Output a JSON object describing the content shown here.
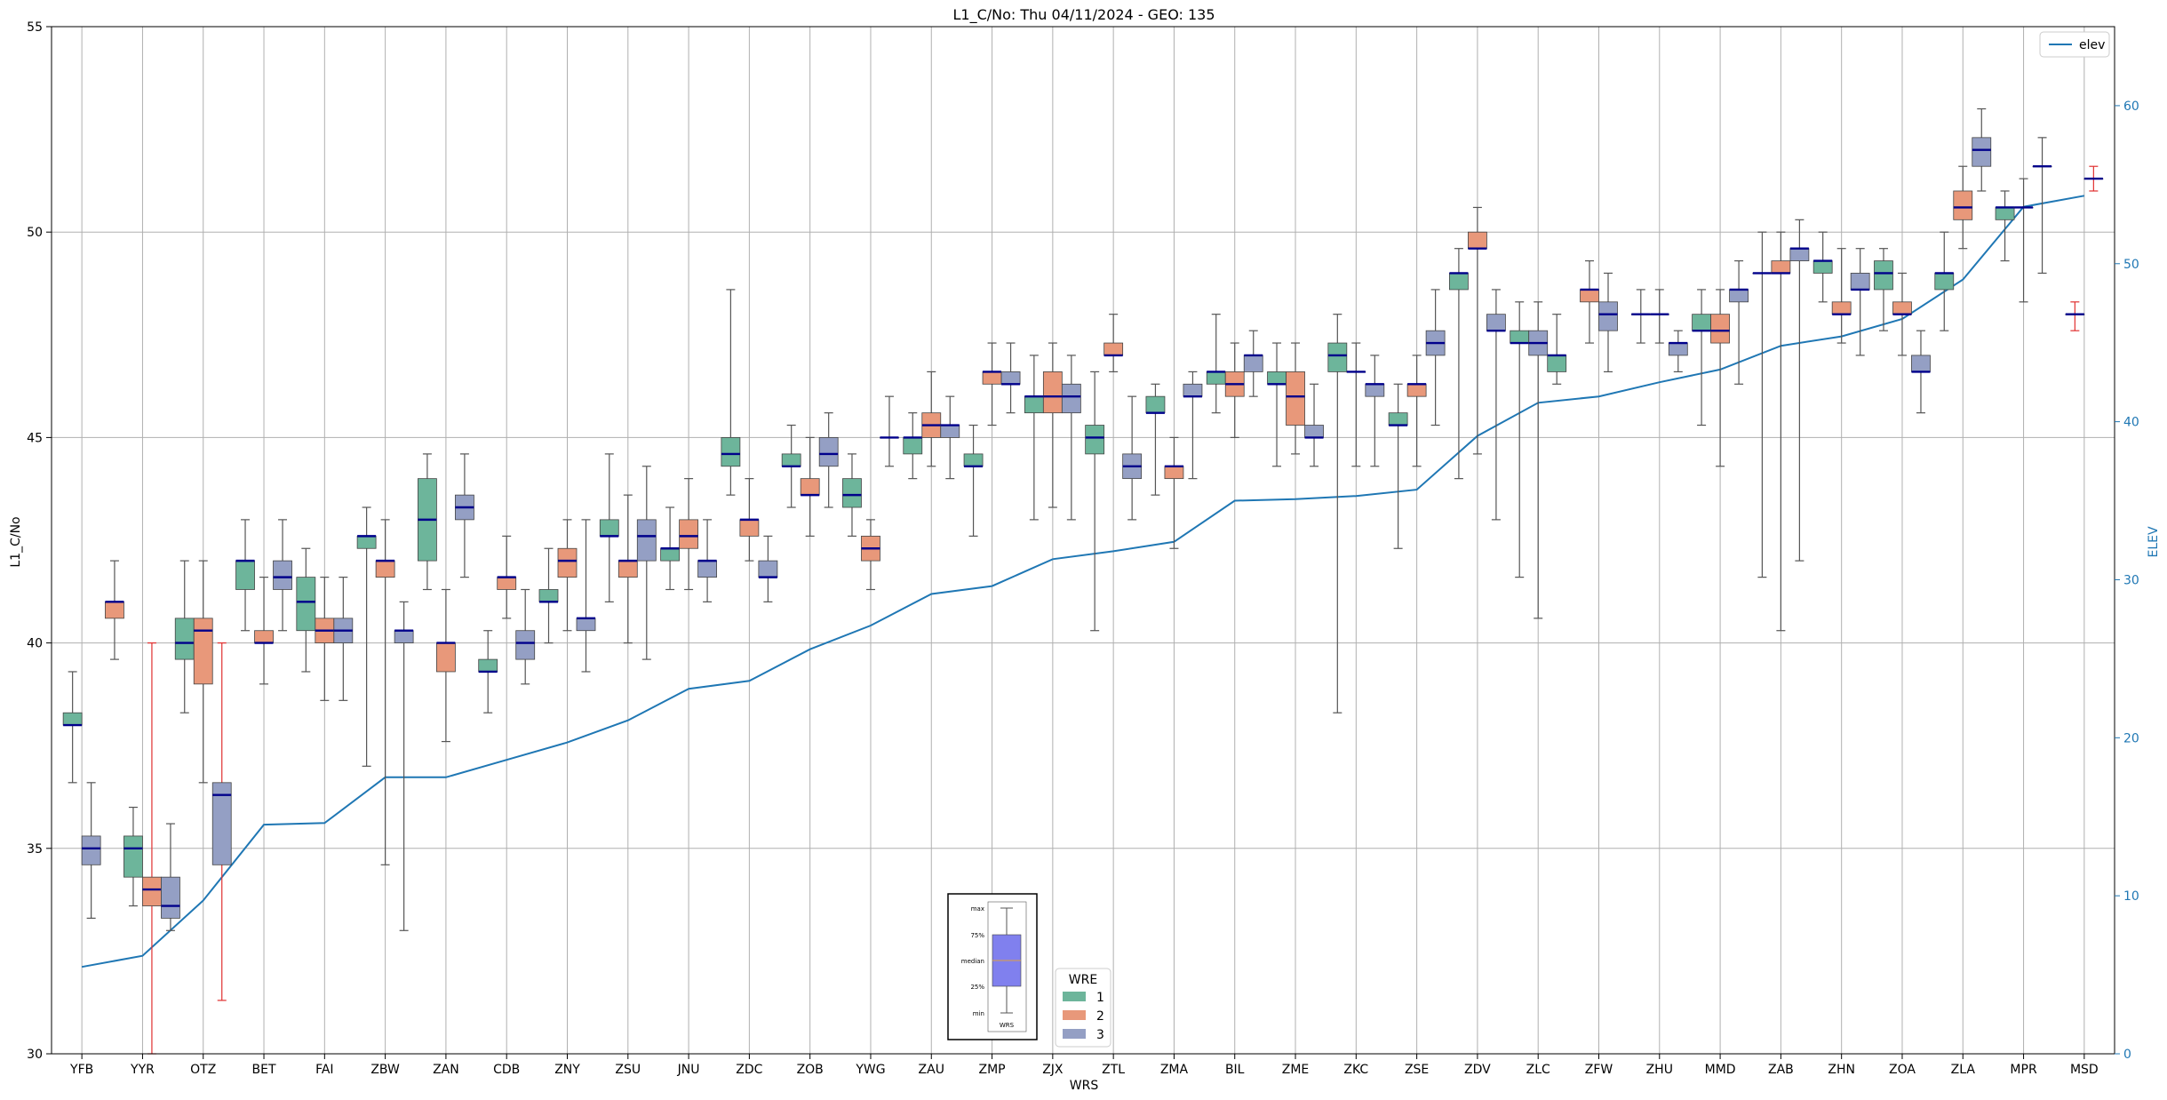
{
  "chart_data": {
    "type": "box",
    "title": "L1_C/No: Thu 04/11/2024 - GEO: 135",
    "xlabel": "WRS",
    "ylabel": "L1_C/No",
    "y2label": "ELEV",
    "ylim": [
      30,
      55
    ],
    "y2lim": [
      0,
      65
    ],
    "yticks": [
      30,
      35,
      40,
      45,
      50,
      55
    ],
    "y2ticks": [
      0,
      10,
      20,
      30,
      40,
      50,
      60
    ],
    "grid": true,
    "categories": [
      "YFB",
      "YYR",
      "OTZ",
      "BET",
      "FAI",
      "ZBW",
      "ZAN",
      "CDB",
      "ZNY",
      "ZSU",
      "JNU",
      "ZDC",
      "ZOB",
      "YWG",
      "ZAU",
      "ZMP",
      "ZJX",
      "ZTL",
      "ZMA",
      "BIL",
      "ZME",
      "ZKC",
      "ZSE",
      "ZDV",
      "ZLC",
      "ZFW",
      "ZHU",
      "MMD",
      "ZAB",
      "ZHN",
      "ZOA",
      "ZLA",
      "MPR",
      "MSD"
    ],
    "wre_legend": {
      "title": "WRE",
      "entries": [
        {
          "label": "1",
          "color": "#6db59b"
        },
        {
          "label": "2",
          "color": "#e8987a"
        },
        {
          "label": "3",
          "color": "#949fc4"
        }
      ]
    },
    "elev_legend": {
      "label": "elev",
      "color": "#1f77b4"
    },
    "elev": [
      5.5,
      6.2,
      9.7,
      14.5,
      14.6,
      17.5,
      17.5,
      18.6,
      19.7,
      21.1,
      23.1,
      23.6,
      25.6,
      27.1,
      29.1,
      29.6,
      31.3,
      31.8,
      32.4,
      35.0,
      35.1,
      35.3,
      35.7,
      39.1,
      41.2,
      41.6,
      42.5,
      43.3,
      44.8,
      45.4,
      46.5,
      49.0,
      53.6,
      54.3
    ],
    "boxes": [
      {
        "cat": "YFB",
        "wre": 1,
        "min": 36.6,
        "q1": 38.0,
        "med": 38.0,
        "q3": 38.3,
        "max": 39.3
      },
      {
        "cat": "YFB",
        "wre": 3,
        "min": 33.3,
        "q1": 34.6,
        "med": 35.0,
        "q3": 35.3,
        "max": 36.6
      },
      {
        "cat": "YYR",
        "wre": 2,
        "min": 39.6,
        "q1": 40.6,
        "med": 41.0,
        "q3": 41.0,
        "max": 42.0
      },
      {
        "cat": "YYR",
        "wre": 1,
        "min": 33.6,
        "q1": 34.3,
        "med": 35.0,
        "q3": 35.3,
        "max": 36.0
      },
      {
        "cat": "YYR",
        "wre": 2,
        "min": 30.0,
        "q1": 33.6,
        "med": 34.0,
        "q3": 34.3,
        "max": 40.0,
        "anomaly": true
      },
      {
        "cat": "YYR",
        "wre": 3,
        "min": 33.0,
        "q1": 33.3,
        "med": 33.6,
        "q3": 34.3,
        "max": 35.6
      },
      {
        "cat": "OTZ",
        "wre": 1,
        "min": 38.3,
        "q1": 39.6,
        "med": 40.0,
        "q3": 40.6,
        "max": 42.0
      },
      {
        "cat": "OTZ",
        "wre": 2,
        "min": 36.6,
        "q1": 39.0,
        "med": 40.3,
        "q3": 40.6,
        "max": 42.0
      },
      {
        "cat": "OTZ",
        "wre": 3,
        "min": 31.3,
        "q1": 34.6,
        "med": 36.3,
        "q3": 36.6,
        "max": 40.0,
        "anomaly": true
      },
      {
        "cat": "BET",
        "wre": 1,
        "min": 40.3,
        "q1": 41.3,
        "med": 42.0,
        "q3": 42.0,
        "max": 43.0
      },
      {
        "cat": "BET",
        "wre": 2,
        "min": 39.0,
        "q1": 40.0,
        "med": 40.0,
        "q3": 40.3,
        "max": 41.6
      },
      {
        "cat": "BET",
        "wre": 3,
        "min": 40.3,
        "q1": 41.3,
        "med": 41.6,
        "q3": 42.0,
        "max": 43.0
      },
      {
        "cat": "FAI",
        "wre": 1,
        "min": 39.3,
        "q1": 40.3,
        "med": 41.0,
        "q3": 41.6,
        "max": 42.3
      },
      {
        "cat": "FAI",
        "wre": 2,
        "min": 38.6,
        "q1": 40.0,
        "med": 40.3,
        "q3": 40.6,
        "max": 41.6
      },
      {
        "cat": "FAI",
        "wre": 3,
        "min": 38.6,
        "q1": 40.0,
        "med": 40.3,
        "q3": 40.6,
        "max": 41.6
      },
      {
        "cat": "ZBW",
        "wre": 1,
        "min": 37.0,
        "q1": 42.3,
        "med": 42.6,
        "q3": 42.6,
        "max": 43.3
      },
      {
        "cat": "ZBW",
        "wre": 2,
        "min": 34.6,
        "q1": 41.6,
        "med": 42.0,
        "q3": 42.0,
        "max": 43.0
      },
      {
        "cat": "ZBW",
        "wre": 3,
        "min": 33.0,
        "q1": 40.0,
        "med": 40.3,
        "q3": 40.3,
        "max": 41.0
      },
      {
        "cat": "ZAN",
        "wre": 1,
        "min": 41.3,
        "q1": 42.0,
        "med": 43.0,
        "q3": 44.0,
        "max": 44.6
      },
      {
        "cat": "ZAN",
        "wre": 2,
        "min": 37.6,
        "q1": 39.3,
        "med": 40.0,
        "q3": 40.0,
        "max": 41.3
      },
      {
        "cat": "ZAN",
        "wre": 3,
        "min": 41.6,
        "q1": 43.0,
        "med": 43.3,
        "q3": 43.6,
        "max": 44.6
      },
      {
        "cat": "CDB",
        "wre": 1,
        "min": 38.3,
        "q1": 39.3,
        "med": 39.3,
        "q3": 39.6,
        "max": 40.3
      },
      {
        "cat": "CDB",
        "wre": 2,
        "min": 40.6,
        "q1": 41.3,
        "med": 41.6,
        "q3": 41.6,
        "max": 42.6
      },
      {
        "cat": "CDB",
        "wre": 3,
        "min": 39.0,
        "q1": 39.6,
        "med": 40.0,
        "q3": 40.3,
        "max": 41.3
      },
      {
        "cat": "ZNY",
        "wre": 1,
        "min": 40.0,
        "q1": 41.0,
        "med": 41.0,
        "q3": 41.3,
        "max": 42.3
      },
      {
        "cat": "ZNY",
        "wre": 2,
        "min": 40.3,
        "q1": 41.6,
        "med": 42.0,
        "q3": 42.3,
        "max": 43.0
      },
      {
        "cat": "ZNY",
        "wre": 3,
        "min": 39.3,
        "q1": 40.3,
        "med": 40.6,
        "q3": 40.6,
        "max": 43.0
      },
      {
        "cat": "ZSU",
        "wre": 1,
        "min": 41.0,
        "q1": 42.6,
        "med": 42.6,
        "q3": 43.0,
        "max": 44.6
      },
      {
        "cat": "ZSU",
        "wre": 2,
        "min": 40.0,
        "q1": 41.6,
        "med": 42.0,
        "q3": 42.0,
        "max": 43.6
      },
      {
        "cat": "ZSU",
        "wre": 3,
        "min": 39.6,
        "q1": 42.0,
        "med": 42.6,
        "q3": 43.0,
        "max": 44.3
      },
      {
        "cat": "JNU",
        "wre": 1,
        "min": 41.3,
        "q1": 42.0,
        "med": 42.3,
        "q3": 42.3,
        "max": 43.3
      },
      {
        "cat": "JNU",
        "wre": 2,
        "min": 41.3,
        "q1": 42.3,
        "med": 42.6,
        "q3": 43.0,
        "max": 44.0
      },
      {
        "cat": "JNU",
        "wre": 3,
        "min": 41.0,
        "q1": 41.6,
        "med": 42.0,
        "q3": 42.0,
        "max": 43.0
      },
      {
        "cat": "ZDC",
        "wre": 1,
        "min": 43.6,
        "q1": 44.3,
        "med": 44.6,
        "q3": 45.0,
        "max": 48.6
      },
      {
        "cat": "ZDC",
        "wre": 2,
        "min": 42.0,
        "q1": 42.6,
        "med": 43.0,
        "q3": 43.0,
        "max": 44.0
      },
      {
        "cat": "ZDC",
        "wre": 3,
        "min": 41.0,
        "q1": 41.6,
        "med": 41.6,
        "q3": 42.0,
        "max": 42.6
      },
      {
        "cat": "ZOB",
        "wre": 1,
        "min": 43.3,
        "q1": 44.3,
        "med": 44.3,
        "q3": 44.6,
        "max": 45.3
      },
      {
        "cat": "ZOB",
        "wre": 2,
        "min": 42.6,
        "q1": 43.6,
        "med": 43.6,
        "q3": 44.0,
        "max": 45.0
      },
      {
        "cat": "ZOB",
        "wre": 3,
        "min": 43.3,
        "q1": 44.3,
        "med": 44.6,
        "q3": 45.0,
        "max": 45.6
      },
      {
        "cat": "YWG",
        "wre": 1,
        "min": 42.6,
        "q1": 43.3,
        "med": 43.6,
        "q3": 44.0,
        "max": 44.6
      },
      {
        "cat": "YWG",
        "wre": 2,
        "min": 41.3,
        "q1": 42.0,
        "med": 42.3,
        "q3": 42.6,
        "max": 43.0
      },
      {
        "cat": "YWG",
        "wre": 3,
        "min": 44.3,
        "q1": 45.0,
        "med": 45.0,
        "q3": 45.0,
        "max": 46.0
      },
      {
        "cat": "ZAU",
        "wre": 1,
        "min": 44.0,
        "q1": 44.6,
        "med": 45.0,
        "q3": 45.0,
        "max": 45.6
      },
      {
        "cat": "ZAU",
        "wre": 2,
        "min": 44.3,
        "q1": 45.0,
        "med": 45.3,
        "q3": 45.6,
        "max": 46.6
      },
      {
        "cat": "ZAU",
        "wre": 3,
        "min": 44.0,
        "q1": 45.0,
        "med": 45.3,
        "q3": 45.3,
        "max": 46.0
      },
      {
        "cat": "ZMP",
        "wre": 1,
        "min": 42.6,
        "q1": 44.3,
        "med": 44.3,
        "q3": 44.6,
        "max": 45.3
      },
      {
        "cat": "ZMP",
        "wre": 2,
        "min": 45.3,
        "q1": 46.3,
        "med": 46.6,
        "q3": 46.6,
        "max": 47.3
      },
      {
        "cat": "ZMP",
        "wre": 3,
        "min": 45.6,
        "q1": 46.3,
        "med": 46.3,
        "q3": 46.6,
        "max": 47.3
      },
      {
        "cat": "ZJX",
        "wre": 1,
        "min": 43.0,
        "q1": 45.6,
        "med": 46.0,
        "q3": 46.0,
        "max": 47.0
      },
      {
        "cat": "ZJX",
        "wre": 2,
        "min": 43.3,
        "q1": 45.6,
        "med": 46.0,
        "q3": 46.6,
        "max": 47.3
      },
      {
        "cat": "ZJX",
        "wre": 3,
        "min": 43.0,
        "q1": 45.6,
        "med": 46.0,
        "q3": 46.3,
        "max": 47.0
      },
      {
        "cat": "ZTL",
        "wre": 1,
        "min": 40.3,
        "q1": 44.6,
        "med": 45.0,
        "q3": 45.3,
        "max": 46.6
      },
      {
        "cat": "ZTL",
        "wre": 2,
        "min": 46.6,
        "q1": 47.0,
        "med": 47.0,
        "q3": 47.3,
        "max": 48.0
      },
      {
        "cat": "ZTL",
        "wre": 3,
        "min": 43.0,
        "q1": 44.0,
        "med": 44.3,
        "q3": 44.6,
        "max": 46.0
      },
      {
        "cat": "ZMA",
        "wre": 1,
        "min": 43.6,
        "q1": 45.6,
        "med": 45.6,
        "q3": 46.0,
        "max": 46.3
      },
      {
        "cat": "ZMA",
        "wre": 2,
        "min": 42.3,
        "q1": 44.0,
        "med": 44.3,
        "q3": 44.3,
        "max": 45.0
      },
      {
        "cat": "ZMA",
        "wre": 3,
        "min": 44.0,
        "q1": 46.0,
        "med": 46.0,
        "q3": 46.3,
        "max": 46.6
      },
      {
        "cat": "BIL",
        "wre": 1,
        "min": 45.6,
        "q1": 46.3,
        "med": 46.6,
        "q3": 46.6,
        "max": 48.0
      },
      {
        "cat": "BIL",
        "wre": 2,
        "min": 45.0,
        "q1": 46.0,
        "med": 46.3,
        "q3": 46.6,
        "max": 47.3
      },
      {
        "cat": "BIL",
        "wre": 3,
        "min": 46.0,
        "q1": 46.6,
        "med": 47.0,
        "q3": 47.0,
        "max": 47.6
      },
      {
        "cat": "ZME",
        "wre": 1,
        "min": 44.3,
        "q1": 46.3,
        "med": 46.3,
        "q3": 46.6,
        "max": 47.3
      },
      {
        "cat": "ZME",
        "wre": 2,
        "min": 44.6,
        "q1": 45.3,
        "med": 46.0,
        "q3": 46.6,
        "max": 47.3
      },
      {
        "cat": "ZME",
        "wre": 3,
        "min": 44.3,
        "q1": 45.0,
        "med": 45.0,
        "q3": 45.3,
        "max": 46.3
      },
      {
        "cat": "ZKC",
        "wre": 1,
        "min": 38.3,
        "q1": 46.6,
        "med": 47.0,
        "q3": 47.3,
        "max": 48.0
      },
      {
        "cat": "ZKC",
        "wre": 2,
        "min": 44.3,
        "q1": 46.6,
        "med": 46.6,
        "q3": 46.6,
        "max": 47.3
      },
      {
        "cat": "ZKC",
        "wre": 3,
        "min": 44.3,
        "q1": 46.0,
        "med": 46.3,
        "q3": 46.3,
        "max": 47.0
      },
      {
        "cat": "ZSE",
        "wre": 1,
        "min": 42.3,
        "q1": 45.3,
        "med": 45.3,
        "q3": 45.6,
        "max": 46.3
      },
      {
        "cat": "ZSE",
        "wre": 2,
        "min": 44.3,
        "q1": 46.0,
        "med": 46.3,
        "q3": 46.3,
        "max": 47.0
      },
      {
        "cat": "ZSE",
        "wre": 3,
        "min": 45.3,
        "q1": 47.0,
        "med": 47.3,
        "q3": 47.6,
        "max": 48.6
      },
      {
        "cat": "ZDV",
        "wre": 1,
        "min": 44.0,
        "q1": 48.6,
        "med": 49.0,
        "q3": 49.0,
        "max": 49.6
      },
      {
        "cat": "ZDV",
        "wre": 2,
        "min": 44.6,
        "q1": 49.6,
        "med": 49.6,
        "q3": 50.0,
        "max": 50.6
      },
      {
        "cat": "ZDV",
        "wre": 3,
        "min": 43.0,
        "q1": 47.6,
        "med": 47.6,
        "q3": 48.0,
        "max": 48.6
      },
      {
        "cat": "ZLC",
        "wre": 1,
        "min": 41.6,
        "q1": 47.3,
        "med": 47.3,
        "q3": 47.6,
        "max": 48.3
      },
      {
        "cat": "ZLC",
        "wre": 3,
        "min": 40.6,
        "q1": 47.0,
        "med": 47.3,
        "q3": 47.6,
        "max": 48.3
      },
      {
        "cat": "ZLC",
        "wre": 1,
        "min": 46.3,
        "q1": 46.6,
        "med": 47.0,
        "q3": 47.0,
        "max": 48.0
      },
      {
        "cat": "ZFW",
        "wre": 2,
        "min": 47.3,
        "q1": 48.3,
        "med": 48.6,
        "q3": 48.6,
        "max": 49.3
      },
      {
        "cat": "ZFW",
        "wre": 3,
        "min": 46.6,
        "q1": 47.6,
        "med": 48.0,
        "q3": 48.3,
        "max": 49.0
      },
      {
        "cat": "ZHU",
        "wre": 1,
        "min": 47.3,
        "q1": 48.0,
        "med": 48.0,
        "q3": 48.0,
        "max": 48.6
      },
      {
        "cat": "ZHU",
        "wre": 2,
        "min": 47.3,
        "q1": 48.0,
        "med": 48.0,
        "q3": 48.0,
        "max": 48.6
      },
      {
        "cat": "ZHU",
        "wre": 3,
        "min": 46.6,
        "q1": 47.0,
        "med": 47.3,
        "q3": 47.3,
        "max": 47.6
      },
      {
        "cat": "MMD",
        "wre": 1,
        "min": 45.3,
        "q1": 47.6,
        "med": 47.6,
        "q3": 48.0,
        "max": 48.6
      },
      {
        "cat": "MMD",
        "wre": 2,
        "min": 44.3,
        "q1": 47.3,
        "med": 47.6,
        "q3": 48.0,
        "max": 48.6
      },
      {
        "cat": "MMD",
        "wre": 3,
        "min": 46.3,
        "q1": 48.3,
        "med": 48.6,
        "q3": 48.6,
        "max": 49.3
      },
      {
        "cat": "ZAB",
        "wre": 1,
        "min": 41.6,
        "q1": 49.0,
        "med": 49.0,
        "q3": 49.0,
        "max": 50.0
      },
      {
        "cat": "ZAB",
        "wre": 2,
        "min": 40.3,
        "q1": 49.0,
        "med": 49.0,
        "q3": 49.3,
        "max": 50.0
      },
      {
        "cat": "ZAB",
        "wre": 3,
        "min": 42.0,
        "q1": 49.3,
        "med": 49.6,
        "q3": 49.6,
        "max": 50.3
      },
      {
        "cat": "ZHN",
        "wre": 1,
        "min": 48.3,
        "q1": 49.0,
        "med": 49.3,
        "q3": 49.3,
        "max": 50.0
      },
      {
        "cat": "ZHN",
        "wre": 2,
        "min": 47.3,
        "q1": 48.0,
        "med": 48.0,
        "q3": 48.3,
        "max": 49.6
      },
      {
        "cat": "ZHN",
        "wre": 3,
        "min": 47.0,
        "q1": 48.6,
        "med": 48.6,
        "q3": 49.0,
        "max": 49.6
      },
      {
        "cat": "ZOA",
        "wre": 1,
        "min": 47.6,
        "q1": 48.6,
        "med": 49.0,
        "q3": 49.3,
        "max": 49.6
      },
      {
        "cat": "ZOA",
        "wre": 2,
        "min": 47.0,
        "q1": 48.0,
        "med": 48.0,
        "q3": 48.3,
        "max": 49.0
      },
      {
        "cat": "ZOA",
        "wre": 3,
        "min": 45.6,
        "q1": 46.6,
        "med": 46.6,
        "q3": 47.0,
        "max": 47.6
      },
      {
        "cat": "ZLA",
        "wre": 1,
        "min": 47.6,
        "q1": 48.6,
        "med": 49.0,
        "q3": 49.0,
        "max": 50.0
      },
      {
        "cat": "ZLA",
        "wre": 2,
        "min": 49.6,
        "q1": 50.3,
        "med": 50.6,
        "q3": 51.0,
        "max": 51.6
      },
      {
        "cat": "ZLA",
        "wre": 3,
        "min": 51.0,
        "q1": 51.6,
        "med": 52.0,
        "q3": 52.3,
        "max": 53.0
      },
      {
        "cat": "MPR",
        "wre": 1,
        "min": 49.3,
        "q1": 50.3,
        "med": 50.6,
        "q3": 50.6,
        "max": 51.0
      },
      {
        "cat": "MPR",
        "wre": 2,
        "min": 48.3,
        "q1": 50.6,
        "med": 50.6,
        "q3": 50.6,
        "max": 51.3
      },
      {
        "cat": "MPR",
        "wre": 3,
        "min": 49.0,
        "q1": 51.6,
        "med": 51.6,
        "q3": 51.6,
        "max": 52.3
      },
      {
        "cat": "MSD",
        "wre": 2,
        "min": 47.6,
        "q1": 48.0,
        "med": 48.0,
        "q3": 48.0,
        "max": 48.3,
        "anomaly": true
      },
      {
        "cat": "MSD",
        "wre": 3,
        "min": 51.0,
        "q1": 51.3,
        "med": 51.3,
        "q3": 51.3,
        "max": 51.6,
        "anomaly": true
      }
    ],
    "inset": {
      "labels": [
        "max",
        "75%",
        "median",
        "25%",
        "min"
      ],
      "caption": "WRS",
      "box_color": "#8080ee"
    }
  }
}
